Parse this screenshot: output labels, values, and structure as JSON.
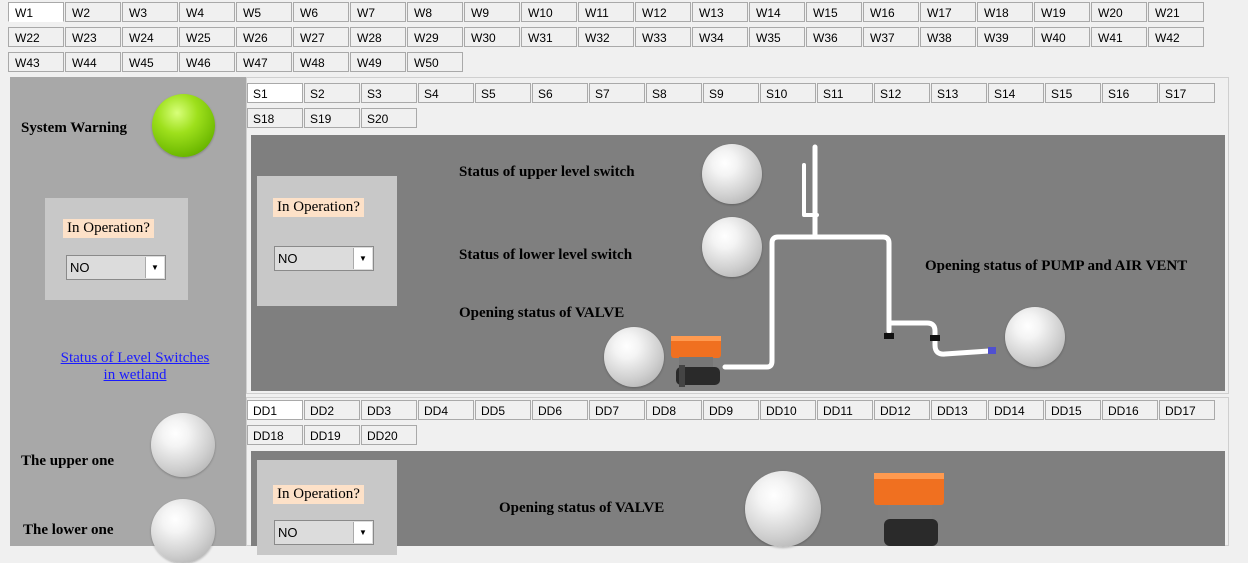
{
  "w_tabs": [
    "W1",
    "W2",
    "W3",
    "W4",
    "W5",
    "W6",
    "W7",
    "W8",
    "W9",
    "W10",
    "W11",
    "W12",
    "W13",
    "W14",
    "W15",
    "W16",
    "W17",
    "W18",
    "W19",
    "W20",
    "W21",
    "W22",
    "W23",
    "W24",
    "W25",
    "W26",
    "W27",
    "W28",
    "W29",
    "W30",
    "W31",
    "W32",
    "W33",
    "W34",
    "W35",
    "W36",
    "W37",
    "W38",
    "W39",
    "W40",
    "W41",
    "W42",
    "W43",
    "W44",
    "W45",
    "W46",
    "W47",
    "W48",
    "W49",
    "W50"
  ],
  "s_tabs": [
    "S1",
    "S2",
    "S3",
    "S4",
    "S5",
    "S6",
    "S7",
    "S8",
    "S9",
    "S10",
    "S11",
    "S12",
    "S13",
    "S14",
    "S15",
    "S16",
    "S17",
    "S18",
    "S19",
    "S20"
  ],
  "dd_tabs": [
    "DD1",
    "DD2",
    "DD3",
    "DD4",
    "DD5",
    "DD6",
    "DD7",
    "DD8",
    "DD9",
    "DD10",
    "DD11",
    "DD12",
    "DD13",
    "DD14",
    "DD15",
    "DD16",
    "DD17",
    "DD18",
    "DD19",
    "DD20"
  ],
  "left": {
    "system_warning": "System Warning",
    "in_operation": "In Operation?",
    "operation_value": "NO",
    "link_line1": "Status of Level Switches",
    "link_line2": "in wetland",
    "upper": "The upper one",
    "lower": "The lower one"
  },
  "station": {
    "in_operation": "In Operation?",
    "operation_value": "NO",
    "upper_switch": "Status of upper level switch",
    "lower_switch": "Status of lower level switch",
    "valve": "Opening status of VALVE",
    "pump": "Opening status of PUMP and AIR VENT"
  },
  "dd": {
    "in_operation": "In Operation?",
    "operation_value": "NO",
    "valve": "Opening status of VALVE"
  },
  "colors": {
    "warning_indicator": "#8fd400",
    "valve_actuator": "#f07020"
  }
}
